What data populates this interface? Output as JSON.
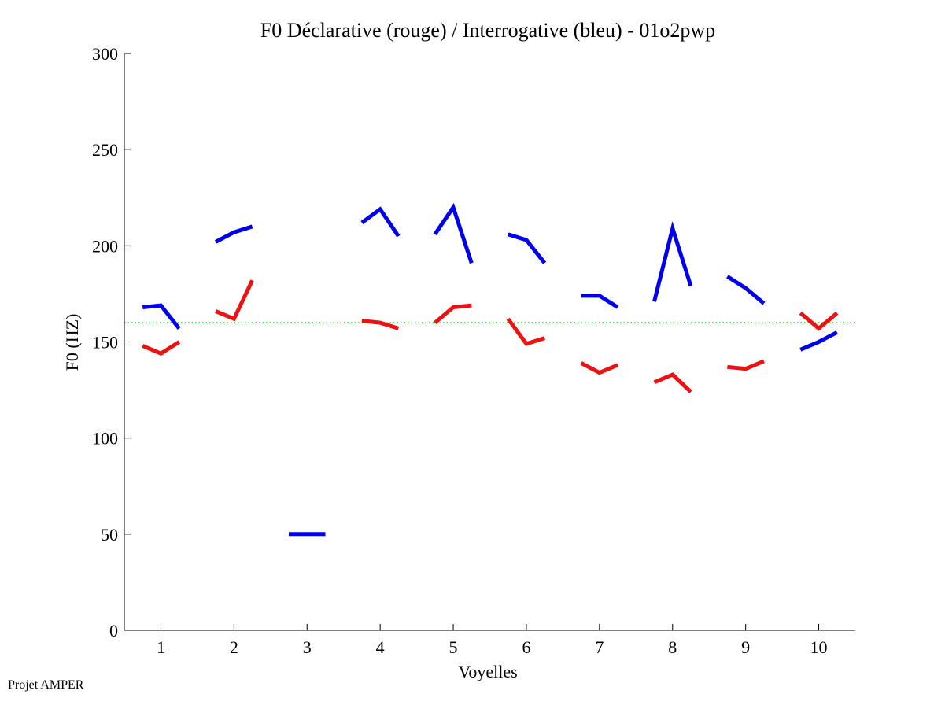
{
  "chart_data": {
    "type": "line",
    "title": "F0 Déclarative (rouge) / Interrogative (bleu) - 01o2pwp",
    "xlabel": "Voyelles",
    "ylabel": "F0 (HZ)",
    "xlim": [
      0.5,
      10.5
    ],
    "ylim": [
      0,
      300
    ],
    "yticks": [
      0,
      50,
      100,
      150,
      200,
      250,
      300
    ],
    "xticks": [
      1,
      2,
      3,
      4,
      5,
      6,
      7,
      8,
      9,
      10
    ],
    "reference_line": {
      "y": 160,
      "color": "#00cc00",
      "style": "dotted"
    },
    "series": [
      {
        "name": "Déclarative (rouge)",
        "color": "#ee1111",
        "segments": [
          {
            "x": [
              0.75,
              1.0,
              1.25
            ],
            "y": [
              148,
              144,
              150
            ]
          },
          {
            "x": [
              1.75,
              2.0,
              2.25
            ],
            "y": [
              166,
              162,
              182
            ]
          },
          {
            "x": [
              3.75,
              4.0,
              4.25
            ],
            "y": [
              161,
              160,
              157
            ]
          },
          {
            "x": [
              4.75,
              5.0,
              5.25
            ],
            "y": [
              160,
              168,
              169
            ]
          },
          {
            "x": [
              5.75,
              6.0,
              6.25
            ],
            "y": [
              162,
              149,
              152
            ]
          },
          {
            "x": [
              6.75,
              7.0,
              7.25
            ],
            "y": [
              139,
              134,
              138
            ]
          },
          {
            "x": [
              7.75,
              8.0,
              8.25
            ],
            "y": [
              129,
              133,
              124
            ]
          },
          {
            "x": [
              8.75,
              9.0,
              9.25
            ],
            "y": [
              137,
              136,
              140
            ]
          },
          {
            "x": [
              9.75,
              10.0,
              10.25
            ],
            "y": [
              165,
              157,
              165
            ]
          }
        ]
      },
      {
        "name": "Interrogative (bleu)",
        "color": "#0000ee",
        "segments": [
          {
            "x": [
              0.75,
              1.0,
              1.25
            ],
            "y": [
              168,
              169,
              157
            ]
          },
          {
            "x": [
              1.75,
              2.0,
              2.25
            ],
            "y": [
              202,
              207,
              210
            ]
          },
          {
            "x": [
              2.75,
              3.0,
              3.25
            ],
            "y": [
              50,
              50,
              50
            ]
          },
          {
            "x": [
              3.75,
              4.0,
              4.25
            ],
            "y": [
              212,
              219,
              205
            ]
          },
          {
            "x": [
              4.75,
              5.0,
              5.25
            ],
            "y": [
              206,
              220,
              191
            ]
          },
          {
            "x": [
              5.75,
              6.0,
              6.25
            ],
            "y": [
              206,
              203,
              191
            ]
          },
          {
            "x": [
              6.75,
              7.0,
              7.25
            ],
            "y": [
              174,
              174,
              168
            ]
          },
          {
            "x": [
              7.75,
              8.0,
              8.25
            ],
            "y": [
              171,
              209,
              179
            ]
          },
          {
            "x": [
              8.75,
              9.0,
              9.25
            ],
            "y": [
              184,
              178,
              170
            ]
          },
          {
            "x": [
              9.75,
              10.0,
              10.25
            ],
            "y": [
              146,
              150,
              155
            ]
          }
        ]
      }
    ]
  },
  "footer": {
    "text": "Projet AMPER"
  }
}
